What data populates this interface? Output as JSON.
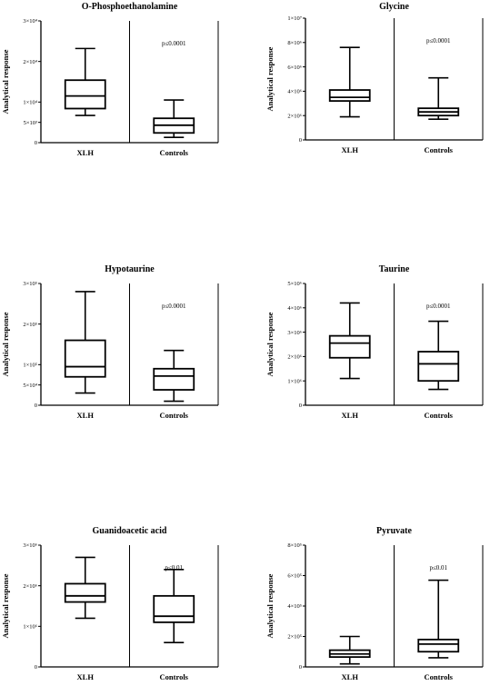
{
  "chart_data": [
    {
      "type": "box",
      "title": "O-Phosphoethanolamine",
      "ylabel": "Analytical response",
      "ylim": [
        0,
        30000
      ],
      "yticks": [
        0,
        5000,
        10000,
        20000,
        30000
      ],
      "yticklabels": [
        "0",
        "5×10³",
        "1×10⁴",
        "2×10⁴",
        "3×10⁴"
      ],
      "categories": [
        "XLH",
        "Controls"
      ],
      "boxes": [
        {
          "min": 6700,
          "q1": 8400,
          "median": 11500,
          "q3": 15400,
          "max": 23200
        },
        {
          "min": 1300,
          "q1": 2400,
          "median": 4300,
          "q3": 6000,
          "max": 10500
        }
      ],
      "annotation": "p≤0.0001"
    },
    {
      "type": "box",
      "title": "Glycine",
      "ylabel": "Analytical response",
      "ylim": [
        0,
        10000000
      ],
      "yticks": [
        0,
        2000000,
        4000000,
        6000000,
        8000000,
        10000000
      ],
      "yticklabels": [
        "0",
        "2×10⁶",
        "4×10⁶",
        "6×10⁶",
        "8×10⁶",
        "1×10⁷"
      ],
      "categories": [
        "XLH",
        "Controls"
      ],
      "boxes": [
        {
          "min": 1900000,
          "q1": 3200000,
          "median": 3500000,
          "q3": 4100000,
          "max": 7600000
        },
        {
          "min": 1700000,
          "q1": 2000000,
          "median": 2300000,
          "q3": 2600000,
          "max": 5100000
        }
      ],
      "annotation": "p≤0.0001"
    },
    {
      "type": "box",
      "title": "Hypotaurine",
      "ylabel": "Analytical response",
      "ylim": [
        0,
        300000
      ],
      "yticks": [
        0,
        50000,
        100000,
        200000,
        300000
      ],
      "yticklabels": [
        "0",
        "5×10⁴",
        "1×10⁵",
        "2×10⁵",
        "3×10⁵"
      ],
      "categories": [
        "XLH",
        "Controls"
      ],
      "boxes": [
        {
          "min": 30000,
          "q1": 70000,
          "median": 95000,
          "q3": 160000,
          "max": 280000
        },
        {
          "min": 10000,
          "q1": 38000,
          "median": 72000,
          "q3": 90000,
          "max": 135000
        }
      ],
      "annotation": "p≤0.0001"
    },
    {
      "type": "box",
      "title": "Taurine",
      "ylabel": "Analytical response",
      "ylim": [
        0,
        5000000
      ],
      "yticks": [
        0,
        1000000,
        2000000,
        3000000,
        4000000,
        5000000
      ],
      "yticklabels": [
        "0",
        "1×10⁶",
        "2×10⁶",
        "3×10⁶",
        "4×10⁶",
        "5×10⁶"
      ],
      "categories": [
        "XLH",
        "Controls"
      ],
      "boxes": [
        {
          "min": 1100000,
          "q1": 1950000,
          "median": 2550000,
          "q3": 2850000,
          "max": 4200000
        },
        {
          "min": 650000,
          "q1": 1000000,
          "median": 1700000,
          "q3": 2200000,
          "max": 3450000
        }
      ],
      "annotation": "p≤0.0001"
    },
    {
      "type": "box",
      "title": "Guanidoacetic acid",
      "ylabel": "Analytical response",
      "ylim": [
        0,
        3000000
      ],
      "yticks": [
        0,
        1000000,
        2000000,
        3000000
      ],
      "yticklabels": [
        "0",
        "1×10⁶",
        "2×10⁶",
        "3×10⁶"
      ],
      "categories": [
        "XLH",
        "Controls"
      ],
      "boxes": [
        {
          "min": 1200000,
          "q1": 1600000,
          "median": 1750000,
          "q3": 2050000,
          "max": 2700000
        },
        {
          "min": 600000,
          "q1": 1100000,
          "median": 1250000,
          "q3": 1750000,
          "max": 2400000
        }
      ],
      "annotation": "p≤0.01"
    },
    {
      "type": "box",
      "title": "Pyruvate",
      "ylabel": "Analytical response",
      "ylim": [
        0,
        800000
      ],
      "yticks": [
        0,
        200000,
        400000,
        600000,
        800000
      ],
      "yticklabels": [
        "0",
        "2×10⁵",
        "4×10⁵",
        "6×10⁵",
        "8×10⁵"
      ],
      "categories": [
        "XLH",
        "Controls"
      ],
      "boxes": [
        {
          "min": 20000,
          "q1": 65000,
          "median": 85000,
          "q3": 110000,
          "max": 200000
        },
        {
          "min": 60000,
          "q1": 100000,
          "median": 150000,
          "q3": 180000,
          "max": 570000
        }
      ],
      "annotation": "p≤0.01"
    }
  ]
}
